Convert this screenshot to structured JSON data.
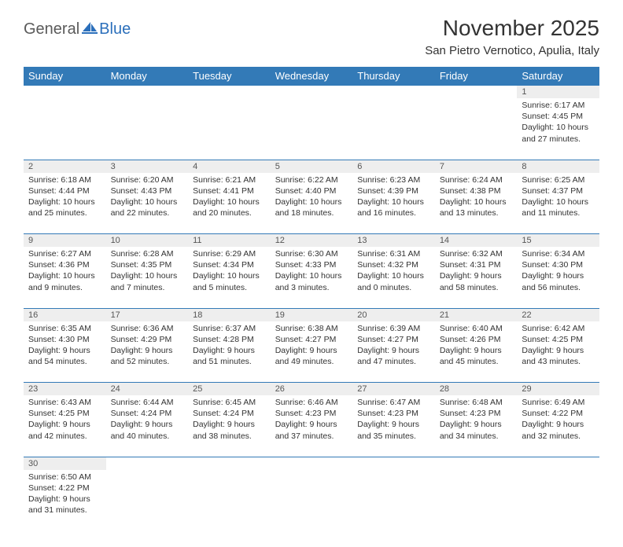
{
  "logo": {
    "part1": "General",
    "part2": "Blue"
  },
  "title": "November 2025",
  "location": "San Pietro Vernotico, Apulia, Italy",
  "colors": {
    "headerBg": "#337ab7",
    "headerText": "#ffffff",
    "dayNumBg": "#eeeeee",
    "borderTop": "#337ab7",
    "logoBlue": "#2b6fbb",
    "logoGray": "#5a5a5a",
    "pageBg": "#ffffff"
  },
  "dayHeaders": [
    "Sunday",
    "Monday",
    "Tuesday",
    "Wednesday",
    "Thursday",
    "Friday",
    "Saturday"
  ],
  "weeks": [
    [
      null,
      null,
      null,
      null,
      null,
      null,
      {
        "n": "1",
        "sunrise": "Sunrise: 6:17 AM",
        "sunset": "Sunset: 4:45 PM",
        "daylight": "Daylight: 10 hours and 27 minutes."
      }
    ],
    [
      {
        "n": "2",
        "sunrise": "Sunrise: 6:18 AM",
        "sunset": "Sunset: 4:44 PM",
        "daylight": "Daylight: 10 hours and 25 minutes."
      },
      {
        "n": "3",
        "sunrise": "Sunrise: 6:20 AM",
        "sunset": "Sunset: 4:43 PM",
        "daylight": "Daylight: 10 hours and 22 minutes."
      },
      {
        "n": "4",
        "sunrise": "Sunrise: 6:21 AM",
        "sunset": "Sunset: 4:41 PM",
        "daylight": "Daylight: 10 hours and 20 minutes."
      },
      {
        "n": "5",
        "sunrise": "Sunrise: 6:22 AM",
        "sunset": "Sunset: 4:40 PM",
        "daylight": "Daylight: 10 hours and 18 minutes."
      },
      {
        "n": "6",
        "sunrise": "Sunrise: 6:23 AM",
        "sunset": "Sunset: 4:39 PM",
        "daylight": "Daylight: 10 hours and 16 minutes."
      },
      {
        "n": "7",
        "sunrise": "Sunrise: 6:24 AM",
        "sunset": "Sunset: 4:38 PM",
        "daylight": "Daylight: 10 hours and 13 minutes."
      },
      {
        "n": "8",
        "sunrise": "Sunrise: 6:25 AM",
        "sunset": "Sunset: 4:37 PM",
        "daylight": "Daylight: 10 hours and 11 minutes."
      }
    ],
    [
      {
        "n": "9",
        "sunrise": "Sunrise: 6:27 AM",
        "sunset": "Sunset: 4:36 PM",
        "daylight": "Daylight: 10 hours and 9 minutes."
      },
      {
        "n": "10",
        "sunrise": "Sunrise: 6:28 AM",
        "sunset": "Sunset: 4:35 PM",
        "daylight": "Daylight: 10 hours and 7 minutes."
      },
      {
        "n": "11",
        "sunrise": "Sunrise: 6:29 AM",
        "sunset": "Sunset: 4:34 PM",
        "daylight": "Daylight: 10 hours and 5 minutes."
      },
      {
        "n": "12",
        "sunrise": "Sunrise: 6:30 AM",
        "sunset": "Sunset: 4:33 PM",
        "daylight": "Daylight: 10 hours and 3 minutes."
      },
      {
        "n": "13",
        "sunrise": "Sunrise: 6:31 AM",
        "sunset": "Sunset: 4:32 PM",
        "daylight": "Daylight: 10 hours and 0 minutes."
      },
      {
        "n": "14",
        "sunrise": "Sunrise: 6:32 AM",
        "sunset": "Sunset: 4:31 PM",
        "daylight": "Daylight: 9 hours and 58 minutes."
      },
      {
        "n": "15",
        "sunrise": "Sunrise: 6:34 AM",
        "sunset": "Sunset: 4:30 PM",
        "daylight": "Daylight: 9 hours and 56 minutes."
      }
    ],
    [
      {
        "n": "16",
        "sunrise": "Sunrise: 6:35 AM",
        "sunset": "Sunset: 4:30 PM",
        "daylight": "Daylight: 9 hours and 54 minutes."
      },
      {
        "n": "17",
        "sunrise": "Sunrise: 6:36 AM",
        "sunset": "Sunset: 4:29 PM",
        "daylight": "Daylight: 9 hours and 52 minutes."
      },
      {
        "n": "18",
        "sunrise": "Sunrise: 6:37 AM",
        "sunset": "Sunset: 4:28 PM",
        "daylight": "Daylight: 9 hours and 51 minutes."
      },
      {
        "n": "19",
        "sunrise": "Sunrise: 6:38 AM",
        "sunset": "Sunset: 4:27 PM",
        "daylight": "Daylight: 9 hours and 49 minutes."
      },
      {
        "n": "20",
        "sunrise": "Sunrise: 6:39 AM",
        "sunset": "Sunset: 4:27 PM",
        "daylight": "Daylight: 9 hours and 47 minutes."
      },
      {
        "n": "21",
        "sunrise": "Sunrise: 6:40 AM",
        "sunset": "Sunset: 4:26 PM",
        "daylight": "Daylight: 9 hours and 45 minutes."
      },
      {
        "n": "22",
        "sunrise": "Sunrise: 6:42 AM",
        "sunset": "Sunset: 4:25 PM",
        "daylight": "Daylight: 9 hours and 43 minutes."
      }
    ],
    [
      {
        "n": "23",
        "sunrise": "Sunrise: 6:43 AM",
        "sunset": "Sunset: 4:25 PM",
        "daylight": "Daylight: 9 hours and 42 minutes."
      },
      {
        "n": "24",
        "sunrise": "Sunrise: 6:44 AM",
        "sunset": "Sunset: 4:24 PM",
        "daylight": "Daylight: 9 hours and 40 minutes."
      },
      {
        "n": "25",
        "sunrise": "Sunrise: 6:45 AM",
        "sunset": "Sunset: 4:24 PM",
        "daylight": "Daylight: 9 hours and 38 minutes."
      },
      {
        "n": "26",
        "sunrise": "Sunrise: 6:46 AM",
        "sunset": "Sunset: 4:23 PM",
        "daylight": "Daylight: 9 hours and 37 minutes."
      },
      {
        "n": "27",
        "sunrise": "Sunrise: 6:47 AM",
        "sunset": "Sunset: 4:23 PM",
        "daylight": "Daylight: 9 hours and 35 minutes."
      },
      {
        "n": "28",
        "sunrise": "Sunrise: 6:48 AM",
        "sunset": "Sunset: 4:23 PM",
        "daylight": "Daylight: 9 hours and 34 minutes."
      },
      {
        "n": "29",
        "sunrise": "Sunrise: 6:49 AM",
        "sunset": "Sunset: 4:22 PM",
        "daylight": "Daylight: 9 hours and 32 minutes."
      }
    ],
    [
      {
        "n": "30",
        "sunrise": "Sunrise: 6:50 AM",
        "sunset": "Sunset: 4:22 PM",
        "daylight": "Daylight: 9 hours and 31 minutes."
      },
      null,
      null,
      null,
      null,
      null,
      null
    ]
  ]
}
